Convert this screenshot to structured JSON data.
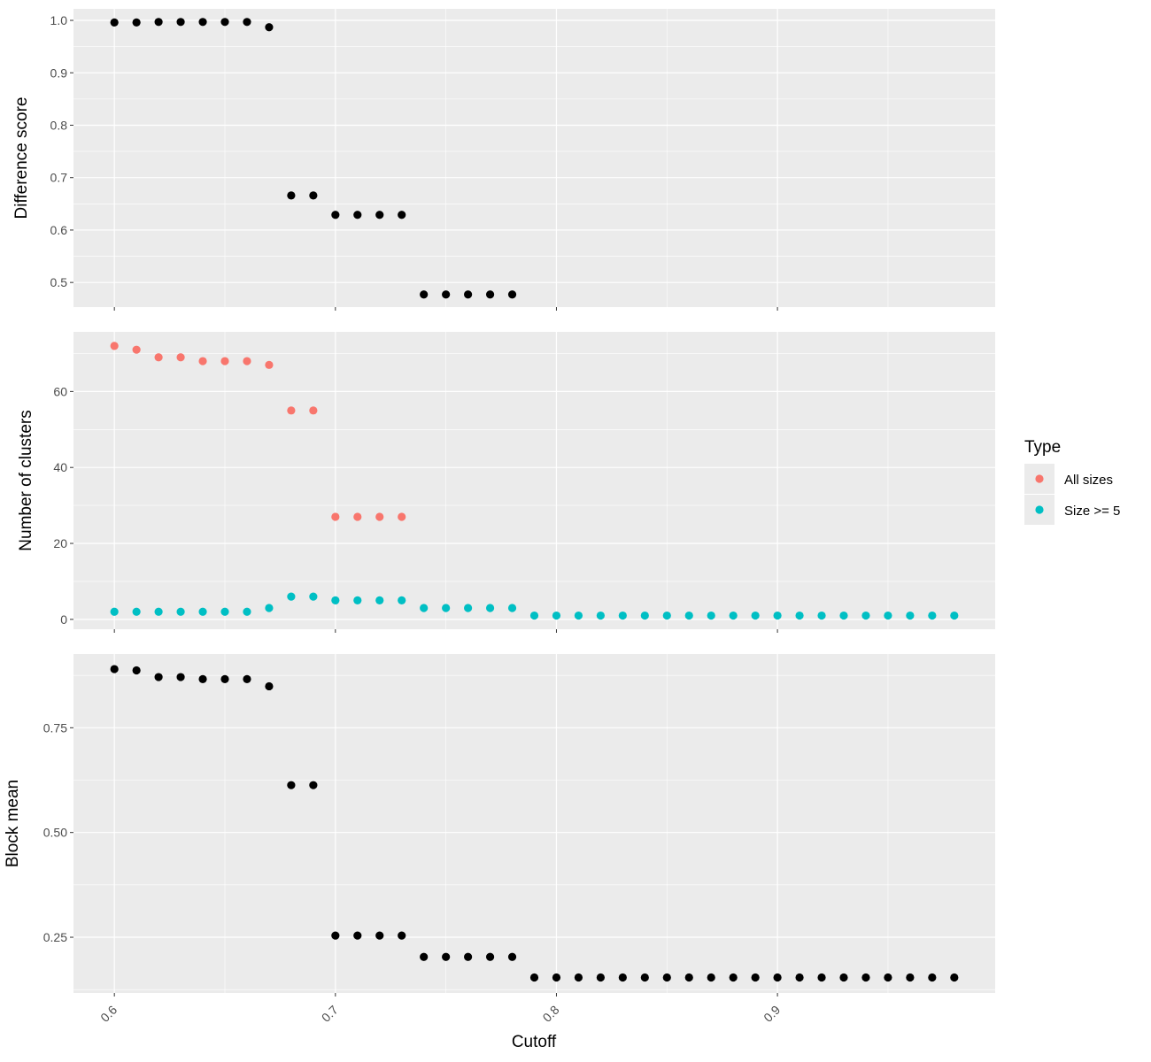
{
  "chart_data": {
    "type": "scatter",
    "xlabel": "Cutoff",
    "x_ticks": [
      0.6,
      0.7,
      0.8,
      0.9
    ],
    "x_tick_labels": [
      "0.6",
      "0.7",
      "0.8",
      "0.9"
    ],
    "xlim": [
      0.5815,
      0.9985
    ],
    "grid": true,
    "legend": {
      "title": "Type",
      "position": "right",
      "entries": [
        {
          "label": "All sizes",
          "color": "#F8766D"
        },
        {
          "label": "Size >= 5",
          "color": "#00BFC4"
        }
      ]
    },
    "panels": [
      {
        "id": "difference",
        "ylabel": "Difference score",
        "ylim": [
          0.453,
          1.022
        ],
        "y_ticks": [
          0.5,
          0.6,
          0.7,
          0.8,
          0.9,
          1.0
        ],
        "y_tick_labels": [
          "0.5",
          "0.6",
          "0.7",
          "0.8",
          "0.9",
          "1.0"
        ],
        "series": [
          {
            "color": "#000000",
            "x": [
              0.6,
              0.61,
              0.62,
              0.63,
              0.64,
              0.65,
              0.66,
              0.67,
              0.68,
              0.69,
              0.7,
              0.71,
              0.72,
              0.73,
              0.74,
              0.75,
              0.76,
              0.77,
              0.78
            ],
            "y": [
              0.996,
              0.996,
              0.997,
              0.997,
              0.997,
              0.997,
              0.997,
              0.987,
              0.666,
              0.666,
              0.629,
              0.629,
              0.629,
              0.629,
              0.477,
              0.477,
              0.477,
              0.477,
              0.477
            ]
          }
        ]
      },
      {
        "id": "clusters",
        "ylabel": "Number of clusters",
        "ylim": [
          -2.6,
          75.7
        ],
        "y_ticks": [
          0,
          20,
          40,
          60
        ],
        "y_tick_labels": [
          "0",
          "20",
          "40",
          "60"
        ],
        "series": [
          {
            "name": "All sizes",
            "color": "#F8766D",
            "x": [
              0.6,
              0.61,
              0.62,
              0.63,
              0.64,
              0.65,
              0.66,
              0.67,
              0.68,
              0.69,
              0.7,
              0.71,
              0.72,
              0.73
            ],
            "y": [
              72,
              71,
              69,
              69,
              68,
              68,
              68,
              67,
              55,
              55,
              27,
              27,
              27,
              27
            ]
          },
          {
            "name": "Size >= 5",
            "color": "#00BFC4",
            "x": [
              0.6,
              0.61,
              0.62,
              0.63,
              0.64,
              0.65,
              0.66,
              0.67,
              0.68,
              0.69,
              0.7,
              0.71,
              0.72,
              0.73,
              0.74,
              0.75,
              0.76,
              0.77,
              0.78,
              0.79,
              0.8,
              0.81,
              0.82,
              0.83,
              0.84,
              0.85,
              0.86,
              0.87,
              0.88,
              0.89,
              0.9,
              0.91,
              0.92,
              0.93,
              0.94,
              0.95,
              0.96,
              0.97,
              0.98
            ],
            "y": [
              2,
              2,
              2,
              2,
              2,
              2,
              2,
              3,
              6,
              6,
              5,
              5,
              5,
              5,
              3,
              3,
              3,
              3,
              3,
              1,
              1,
              1,
              1,
              1,
              1,
              1,
              1,
              1,
              1,
              1,
              1,
              1,
              1,
              1,
              1,
              1,
              1,
              1,
              1
            ]
          }
        ]
      },
      {
        "id": "block",
        "ylabel": "Block mean",
        "ylim": [
          0.117,
          0.926
        ],
        "y_ticks": [
          0.25,
          0.5,
          0.75
        ],
        "y_tick_labels": [
          "0.25",
          "0.50",
          "0.75"
        ],
        "series": [
          {
            "color": "#000000",
            "x": [
              0.6,
              0.61,
              0.62,
              0.63,
              0.64,
              0.65,
              0.66,
              0.67,
              0.68,
              0.69,
              0.7,
              0.71,
              0.72,
              0.73,
              0.74,
              0.75,
              0.76,
              0.77,
              0.78,
              0.79,
              0.8,
              0.81,
              0.82,
              0.83,
              0.84,
              0.85,
              0.86,
              0.87,
              0.88,
              0.89,
              0.9,
              0.91,
              0.92,
              0.93,
              0.94,
              0.95,
              0.96,
              0.97,
              0.98
            ],
            "y": [
              0.89,
              0.887,
              0.871,
              0.871,
              0.866,
              0.866,
              0.866,
              0.849,
              0.613,
              0.613,
              0.254,
              0.254,
              0.254,
              0.254,
              0.203,
              0.203,
              0.203,
              0.203,
              0.203,
              0.154,
              0.154,
              0.154,
              0.154,
              0.154,
              0.154,
              0.154,
              0.154,
              0.154,
              0.154,
              0.154,
              0.154,
              0.154,
              0.154,
              0.154,
              0.154,
              0.154,
              0.154,
              0.154,
              0.154
            ]
          }
        ]
      }
    ]
  }
}
